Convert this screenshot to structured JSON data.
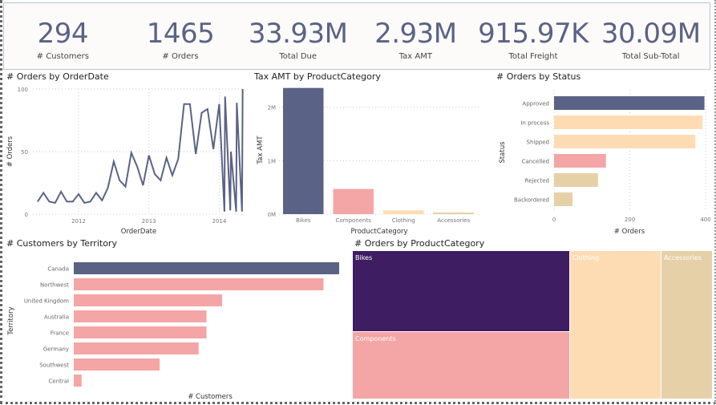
{
  "kpis": [
    {
      "value": "294",
      "label": "# Customers"
    },
    {
      "value": "1465",
      "label": "# Orders"
    },
    {
      "value": "33.93M",
      "label": "Total Due"
    },
    {
      "value": "2.93M",
      "label": "Tax AMT"
    },
    {
      "value": "915.97K",
      "label": "Total Freight"
    },
    {
      "value": "30.09M",
      "label": "Total Sub-Total"
    }
  ],
  "chart_data": [
    {
      "type": "line",
      "title": "# Orders by OrderDate",
      "xlabel": "OrderDate",
      "ylabel": "# Orders",
      "ylim": [
        0,
        100
      ],
      "yticks": [
        "0",
        "50",
        "100"
      ],
      "xticks": [
        "2012",
        "2013",
        "2014"
      ],
      "grid": true,
      "color": "#5a6385",
      "points": [
        [
          "2011-06",
          10
        ],
        [
          "2011-07",
          17
        ],
        [
          "2011-08",
          10
        ],
        [
          "2011-09",
          9
        ],
        [
          "2011-10",
          18
        ],
        [
          "2011-11",
          10
        ],
        [
          "2011-12",
          10
        ],
        [
          "2012-01",
          16
        ],
        [
          "2012-02",
          9
        ],
        [
          "2012-03",
          10
        ],
        [
          "2012-04",
          17
        ],
        [
          "2012-05",
          11
        ],
        [
          "2012-06",
          21
        ],
        [
          "2012-07",
          42
        ],
        [
          "2012-08",
          27
        ],
        [
          "2012-09",
          22
        ],
        [
          "2012-10",
          49
        ],
        [
          "2012-11",
          38
        ],
        [
          "2012-12",
          23
        ],
        [
          "2013-01",
          47
        ],
        [
          "2013-02",
          32
        ],
        [
          "2013-03",
          27
        ],
        [
          "2013-04",
          45
        ],
        [
          "2013-05",
          31
        ],
        [
          "2013-06",
          44
        ],
        [
          "2013-07",
          88
        ],
        [
          "2013-08",
          88
        ],
        [
          "2013-09",
          48
        ],
        [
          "2013-10",
          81
        ],
        [
          "2013-11",
          84
        ],
        [
          "2013-12",
          52
        ],
        [
          "2014-01",
          88
        ],
        [
          "2014-01-28",
          2
        ],
        [
          "2014-02",
          94
        ],
        [
          "2014-02-28",
          3
        ],
        [
          "2014-03",
          50
        ],
        [
          "2014-03-28",
          2
        ],
        [
          "2014-04",
          89
        ],
        [
          "2014-04-28",
          2
        ],
        [
          "2014-05",
          100
        ]
      ]
    },
    {
      "type": "bar",
      "title": "Tax AMT by ProductCategory",
      "xlabel": "ProductCategory",
      "ylabel": "Tax AMT",
      "ylim": [
        0,
        2400000
      ],
      "yticks": [
        "0M",
        "1M",
        "2M"
      ],
      "categories": [
        "Bikes",
        "Components",
        "Clothing",
        "Accessories"
      ],
      "values": [
        2360000,
        470000,
        70000,
        30000
      ],
      "colors": [
        "#5a6385",
        "#f4a5a5",
        "#fddcb4",
        "#e6d0a8"
      ]
    },
    {
      "type": "bar",
      "orientation": "horizontal",
      "title": "# Orders by Status",
      "xlabel": "# Orders",
      "ylabel": "Status",
      "xlim": [
        0,
        400
      ],
      "xticks": [
        "0",
        "200",
        "400"
      ],
      "categories": [
        "Approved",
        "In process",
        "Shipped",
        "Cancelled",
        "Rejected",
        "Backordered"
      ],
      "values": [
        397,
        392,
        373,
        137,
        116,
        49
      ],
      "colors": [
        "#5a6385",
        "#fddcb4",
        "#fddcb4",
        "#f4a5a5",
        "#e6d0a8",
        "#e6d0a8"
      ]
    },
    {
      "type": "bar",
      "orientation": "horizontal",
      "title": "# Customers by Territory",
      "xlabel": "# Customers",
      "ylabel": "Territory",
      "categories": [
        "Canada",
        "Northwest",
        "United Kingdom",
        "Australia",
        "France",
        "Germany",
        "Southwest",
        "Central"
      ],
      "values": [
        68,
        64,
        38,
        34,
        34,
        32,
        22,
        2
      ],
      "colors": [
        "#5a6385",
        "#f4a5a5",
        "#f4a5a5",
        "#f4a5a5",
        "#f4a5a5",
        "#f4a5a5",
        "#f4a5a5",
        "#f4a5a5"
      ]
    },
    {
      "type": "treemap",
      "title": "# Orders by ProductCategory",
      "categories": [
        "Bikes",
        "Components",
        "Clothing",
        "Accessories"
      ],
      "colors": [
        "#3f1d63",
        "#f4a5a5",
        "#fddcb4",
        "#e6d0a8"
      ]
    }
  ]
}
